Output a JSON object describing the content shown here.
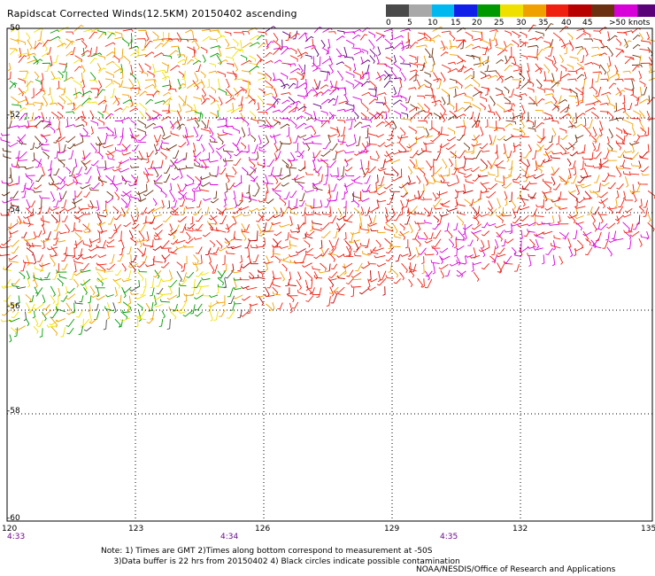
{
  "header": {
    "title": "Rapidscat Corrected Winds(12.5KM) 20150402 ascending"
  },
  "legend": {
    "labels": [
      "0",
      "5",
      "10",
      "15",
      "20",
      "25",
      "30",
      "35",
      "40",
      "45",
      ">50 knots"
    ],
    "colors": [
      "#4a4a4a",
      "#a8a8a8",
      "#00b8f0",
      "#1020e8",
      "#009a00",
      "#f0e000",
      "#f0a000",
      "#f02010",
      "#b80000",
      "#6a3010",
      "#d800d8",
      "#5a0078"
    ]
  },
  "map": {
    "lat_labels": [
      "-50",
      "-52",
      "-54",
      "-56",
      "-58",
      "-60"
    ],
    "lon_labels": [
      "120",
      "123",
      "126",
      "129",
      "132",
      "135"
    ],
    "time_labels": [
      "4:33",
      "4:34",
      "4:35"
    ]
  },
  "footer": {
    "note_line1": "Note: 1) Times are GMT 2)Times along bottom correspond to measurement at -50S",
    "note_line2": "3)Data buffer is 22 hrs from 20150402 4) Black circles indicate possible contamination",
    "credit": "NOAA/NESDIS/Office of Research and Applications"
  }
}
